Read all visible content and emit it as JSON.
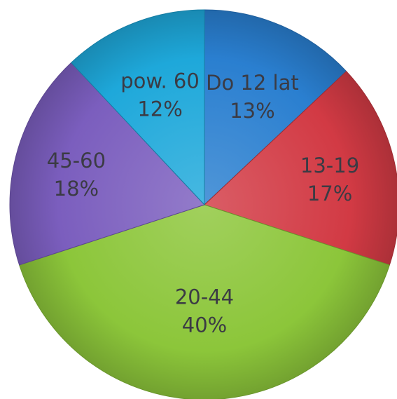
{
  "chart_data": {
    "type": "pie",
    "title": "",
    "slices": [
      {
        "label": "Do 12 lat",
        "percent_label": "13%",
        "value": 13,
        "color": "#2a7fd0"
      },
      {
        "label": "13-19",
        "percent_label": "17%",
        "value": 17,
        "color": "#d23a44"
      },
      {
        "label": "20-44",
        "percent_label": "40%",
        "value": 40,
        "color": "#8cc63a"
      },
      {
        "label": "45-60",
        "percent_label": "18%",
        "value": 18,
        "color": "#7b5ebe"
      },
      {
        "label": "pow. 60",
        "percent_label": "12%",
        "value": 12,
        "color": "#1ea8da"
      }
    ],
    "start_angle_deg": 0,
    "direction": "clockwise",
    "legend": "none"
  }
}
